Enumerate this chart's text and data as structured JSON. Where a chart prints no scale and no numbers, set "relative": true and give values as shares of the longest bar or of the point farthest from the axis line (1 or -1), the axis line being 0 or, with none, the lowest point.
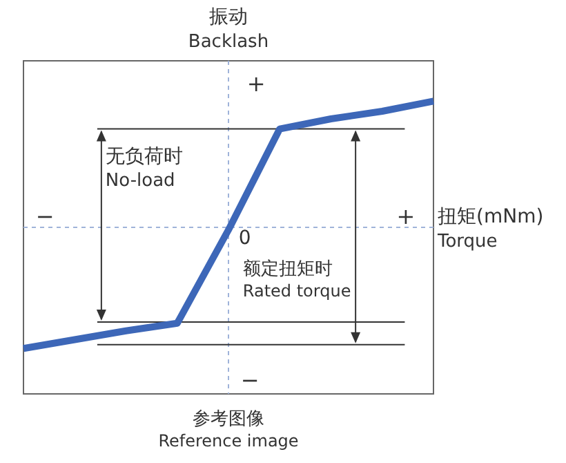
{
  "chart_data": {
    "type": "line",
    "relative": true,
    "title": "振动\nBacklash",
    "xlabel": "扭矩(mNm)\nTorque",
    "marker": "none",
    "line_style": "solid",
    "categories": [
      null,
      null,
      null,
      null,
      null,
      null,
      null,
      null,
      null
    ],
    "series": [
      {
        "color": "#3d67b8",
        "values": [
          -0.96,
          -0.89,
          -0.82,
          -0.76,
          -0.02,
          0.78,
          0.86,
          0.92,
          1
        ]
      }
    ],
    "ref_lines": [
      {
        "axis": "y",
        "value": 0,
        "color": "#9fb3d9",
        "line_style": "dashed"
      },
      {
        "axis": "y",
        "value": 0.78,
        "color": "#333333",
        "line_style": "solid"
      },
      {
        "axis": "y",
        "value": -0.75,
        "color": "#333333",
        "line_style": "solid"
      },
      {
        "axis": "y",
        "value": -0.93,
        "color": "#333333",
        "line_style": "solid"
      }
    ],
    "annotations": [
      "+",
      "−",
      "+",
      "−",
      "0",
      "无负荷时\nNo-load",
      "额定扭矩时\nRated torque",
      "参考图像\nReference image"
    ]
  }
}
